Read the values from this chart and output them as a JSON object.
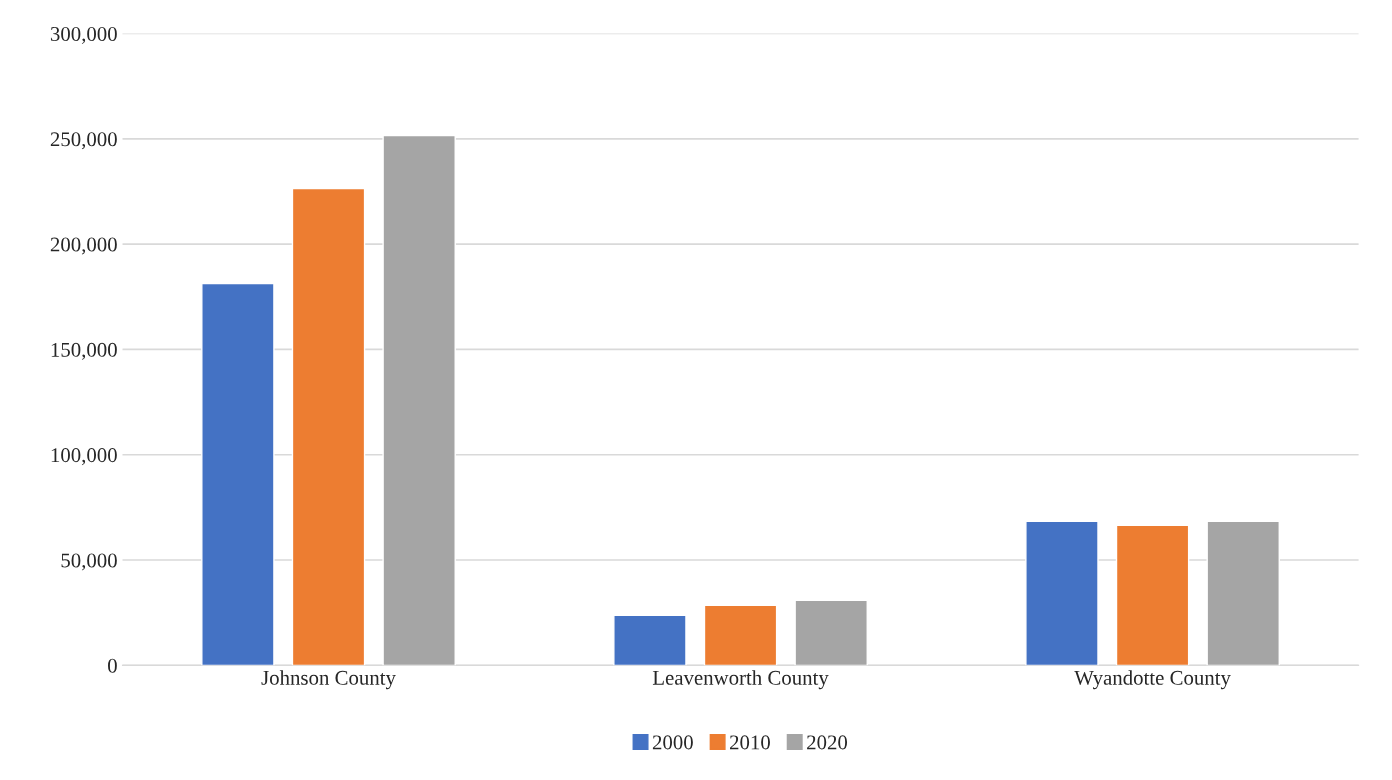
{
  "chart_data": {
    "type": "bar",
    "categories": [
      "Johnson County",
      "Leavenworth County",
      "Wyandotte County"
    ],
    "series": [
      {
        "name": "2000",
        "color": "#4472c4",
        "values": [
          181300,
          23700,
          68400
        ]
      },
      {
        "name": "2010",
        "color": "#ed7d31",
        "values": [
          226400,
          28500,
          66500
        ]
      },
      {
        "name": "2020",
        "color": "#a5a5a5",
        "values": [
          251600,
          30900,
          68400
        ]
      }
    ],
    "ylim": [
      0,
      300000
    ],
    "yticks": [
      {
        "value": 0,
        "label": "0"
      },
      {
        "value": 50000,
        "label": "50,000"
      },
      {
        "value": 100000,
        "label": "100,000"
      },
      {
        "value": 150000,
        "label": "150,000"
      },
      {
        "value": 200000,
        "label": "200,000"
      },
      {
        "value": 250000,
        "label": "250,000"
      },
      {
        "value": 300000,
        "label": "300,000"
      }
    ],
    "grid": "y",
    "legend": "bottom"
  }
}
